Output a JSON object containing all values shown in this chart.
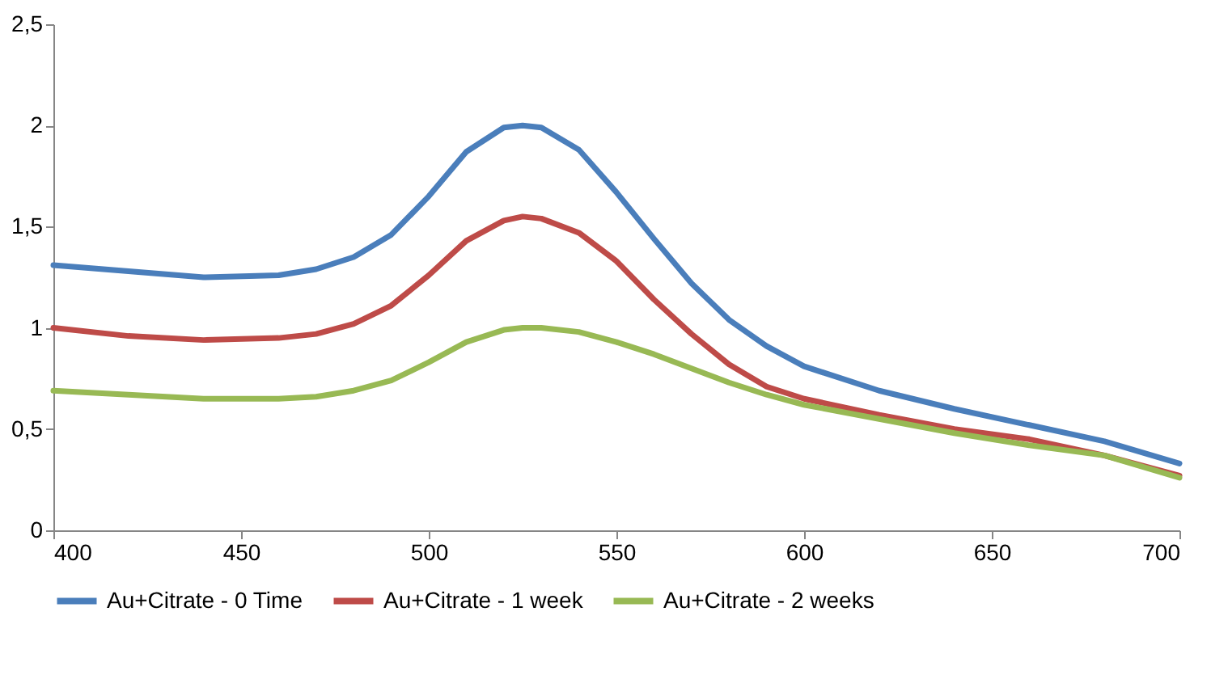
{
  "chart_data": {
    "type": "line",
    "x": [
      400,
      420,
      440,
      460,
      470,
      480,
      490,
      500,
      510,
      520,
      525,
      530,
      540,
      550,
      560,
      570,
      580,
      590,
      600,
      620,
      640,
      660,
      680,
      700
    ],
    "series": [
      {
        "name": "Au+Citrate - 0 Time",
        "color": "#4a7ebb",
        "values": [
          1.31,
          1.28,
          1.25,
          1.26,
          1.29,
          1.35,
          1.46,
          1.65,
          1.87,
          1.99,
          2.0,
          1.99,
          1.88,
          1.67,
          1.44,
          1.22,
          1.04,
          0.91,
          0.81,
          0.69,
          0.6,
          0.52,
          0.44,
          0.33
        ]
      },
      {
        "name": "Au+Citrate - 1 week",
        "color": "#be4b48",
        "values": [
          1.0,
          0.96,
          0.94,
          0.95,
          0.97,
          1.02,
          1.11,
          1.26,
          1.43,
          1.53,
          1.55,
          1.54,
          1.47,
          1.33,
          1.14,
          0.97,
          0.82,
          0.71,
          0.65,
          0.57,
          0.5,
          0.45,
          0.37,
          0.27
        ]
      },
      {
        "name": "Au+Citrate - 2 weeks",
        "color": "#98b954",
        "values": [
          0.69,
          0.67,
          0.65,
          0.65,
          0.66,
          0.69,
          0.74,
          0.83,
          0.93,
          0.99,
          1.0,
          1.0,
          0.98,
          0.93,
          0.87,
          0.8,
          0.73,
          0.67,
          0.62,
          0.55,
          0.48,
          0.42,
          0.37,
          0.26
        ]
      }
    ],
    "xlim": [
      400,
      700
    ],
    "xticks": [
      400,
      450,
      500,
      550,
      600,
      650,
      700
    ],
    "ylim": [
      0,
      2.5
    ],
    "yticks": [
      0,
      {
        "value": 0.5,
        "label": "0,5"
      },
      1,
      {
        "value": 1.5,
        "label": "1,5"
      },
      2,
      {
        "value": 2.5,
        "label": "2,5"
      }
    ],
    "grid": false,
    "legend": "bottom",
    "marker": "none",
    "line_style": "solid"
  }
}
